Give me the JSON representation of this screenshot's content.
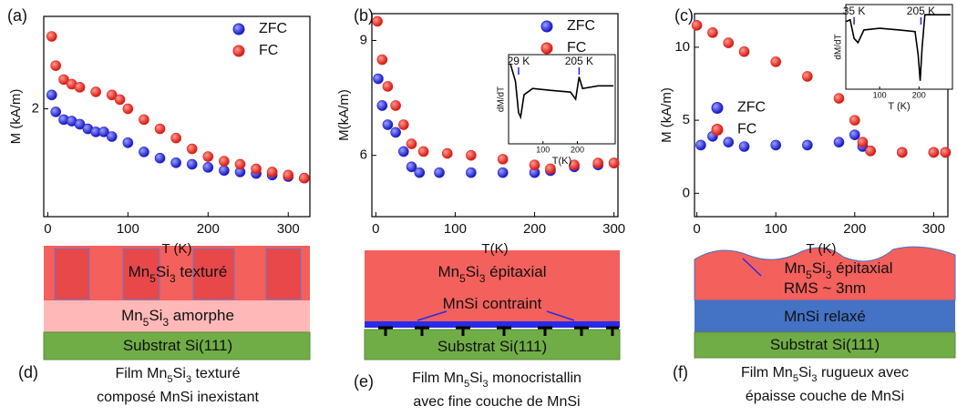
{
  "chart_data": [
    {
      "type": "scatter",
      "label": "(a)",
      "xlabel": "T (K)",
      "ylabel": "M (kA/m)",
      "legend": "upper right",
      "xlim": [
        -5,
        327
      ],
      "xticks": [
        0,
        100,
        200,
        300
      ],
      "ylim": [
        1.3,
        2.6
      ],
      "yticks": [
        2
      ],
      "series": [
        {
          "name": "ZFC",
          "color": "#2424d6",
          "x": [
            5,
            10,
            20,
            30,
            40,
            50,
            60,
            70,
            80,
            100,
            120,
            140,
            160,
            180,
            200,
            220,
            240,
            260,
            280,
            300,
            320
          ],
          "values": [
            2.09,
            1.98,
            1.93,
            1.92,
            1.9,
            1.87,
            1.85,
            1.85,
            1.82,
            1.78,
            1.72,
            1.68,
            1.65,
            1.64,
            1.62,
            1.6,
            1.59,
            1.58,
            1.57,
            1.56,
            1.55
          ]
        },
        {
          "name": "FC",
          "color": "#e8231c",
          "x": [
            5,
            10,
            20,
            30,
            40,
            60,
            80,
            90,
            100,
            120,
            140,
            160,
            180,
            200,
            220,
            240,
            260,
            280,
            300,
            320
          ],
          "values": [
            2.47,
            2.28,
            2.19,
            2.16,
            2.14,
            2.11,
            2.09,
            2.06,
            2.0,
            1.93,
            1.87,
            1.81,
            1.74,
            1.69,
            1.66,
            1.64,
            1.61,
            1.59,
            1.57,
            1.55
          ]
        }
      ]
    },
    {
      "type": "scatter",
      "label": "(b)",
      "xlabel": "T(K)",
      "ylabel": "M(kA/m)",
      "legend": "upper right",
      "xlim": [
        -5,
        305
      ],
      "xticks": [
        0,
        100,
        200,
        300
      ],
      "ylim": [
        4.4,
        9.7
      ],
      "yticks": [
        6,
        9
      ],
      "series": [
        {
          "name": "ZFC",
          "color": "#2424d6",
          "x": [
            3,
            8,
            15,
            25,
            35,
            45,
            55,
            80,
            120,
            160,
            200,
            220,
            250,
            280,
            300
          ],
          "values": [
            8.0,
            7.3,
            6.8,
            6.6,
            6.1,
            5.7,
            5.55,
            5.55,
            5.55,
            5.55,
            5.55,
            5.6,
            5.7,
            5.75,
            5.8
          ]
        },
        {
          "name": "FC",
          "color": "#e8231c",
          "x": [
            2,
            8,
            15,
            25,
            35,
            45,
            60,
            90,
            120,
            160,
            200,
            220,
            250,
            280,
            300
          ],
          "values": [
            9.5,
            8.5,
            7.8,
            7.3,
            6.8,
            6.3,
            6.1,
            6.05,
            6.0,
            5.9,
            5.75,
            5.65,
            5.75,
            5.8,
            5.8
          ]
        }
      ],
      "inset": {
        "xlabel": "T(K)",
        "ylabel": "dM/dT",
        "xlim": [
          0,
          310
        ],
        "xticks": [
          100,
          200
        ],
        "ylim": [
          0,
          1
        ],
        "annotations": [
          {
            "text": "29 K",
            "x": 29
          },
          {
            "text": "205 K",
            "x": 205
          }
        ],
        "series": [
          {
            "color": "#000000",
            "x": [
              5,
              20,
              29,
              35,
              45,
              70,
              120,
              180,
              195,
              205,
              215,
              260,
              305
            ],
            "values": [
              0.9,
              0.7,
              0.35,
              0.3,
              0.55,
              0.62,
              0.6,
              0.58,
              0.5,
              0.75,
              0.62,
              0.65,
              0.65
            ]
          }
        ]
      }
    },
    {
      "type": "scatter",
      "label": "(c)",
      "xlabel": "T (K)",
      "ylabel": "M (kA/m)",
      "legend": "center left",
      "xlim": [
        -3,
        318
      ],
      "xticks": [
        0,
        100,
        200,
        300
      ],
      "ylim": [
        -1.6,
        12.3
      ],
      "yticks": [
        0,
        5,
        10
      ],
      "series": [
        {
          "name": "ZFC",
          "color": "#2424d6",
          "x": [
            5,
            20,
            40,
            60,
            100,
            140,
            180,
            200,
            210,
            220,
            260,
            300,
            315
          ],
          "values": [
            3.3,
            3.9,
            3.5,
            3.2,
            3.3,
            3.3,
            3.5,
            4.0,
            3.2,
            2.9,
            2.8,
            2.8,
            2.8
          ]
        },
        {
          "name": "FC",
          "color": "#e8231c",
          "x": [
            0,
            20,
            40,
            60,
            100,
            140,
            180,
            200,
            210,
            220,
            260,
            300,
            315
          ],
          "values": [
            11.5,
            11.0,
            10.3,
            9.7,
            9.0,
            8.0,
            6.5,
            5.0,
            3.5,
            2.9,
            2.8,
            2.8,
            2.8
          ]
        }
      ],
      "inset": {
        "xlabel": "T (K)",
        "ylabel": "dM/dT",
        "xlim": [
          14,
          285
        ],
        "xticks": [
          100,
          200
        ],
        "ylim": [
          0,
          1
        ],
        "annotations": [
          {
            "text": "35 K",
            "x": 35
          },
          {
            "text": "205 K",
            "x": 205
          }
        ],
        "series": [
          {
            "color": "#000000",
            "x": [
              15,
              25,
              35,
              45,
              60,
              100,
              150,
              190,
              198,
              203,
              208,
              215,
              280
            ],
            "values": [
              0.8,
              0.82,
              0.6,
              0.55,
              0.7,
              0.72,
              0.7,
              0.68,
              0.4,
              0.1,
              0.5,
              0.88,
              0.88
            ]
          }
        ]
      }
    }
  ],
  "diagrams": [
    {
      "label": "(d)",
      "layers": [
        [
          "Mn",
          "5",
          "Si",
          "3",
          " texturé"
        ],
        [
          "Mn",
          "5",
          "Si",
          "3",
          " amorphe"
        ],
        [
          "Substrat Si(111)"
        ]
      ],
      "caption": [
        [
          "Film Mn",
          "5",
          "Si",
          "3",
          " texturé"
        ],
        [
          "composé MnSi inexistant"
        ]
      ]
    },
    {
      "label": "(e)",
      "layers": [
        [
          "Mn",
          "5",
          "Si",
          "3",
          " épitaxial"
        ],
        [
          "MnSi contraint"
        ],
        [
          "Substrat Si(111)"
        ]
      ],
      "caption": [
        [
          "Film Mn",
          "5",
          "Si",
          "3",
          " monocristallin"
        ],
        [
          "avec fine couche de MnSi"
        ]
      ]
    },
    {
      "label": "(f)",
      "layers": [
        [
          "Mn",
          "5",
          "Si",
          "3",
          " épitaxial"
        ],
        [
          "RMS ~ 3nm"
        ],
        [
          "MnSi relaxé"
        ],
        [
          "Substrat Si(111)"
        ]
      ],
      "caption": [
        [
          "Film Mn",
          "5",
          "Si",
          "3",
          " rugueux avec"
        ],
        [
          "épaisse couche de MnSi"
        ]
      ]
    }
  ]
}
